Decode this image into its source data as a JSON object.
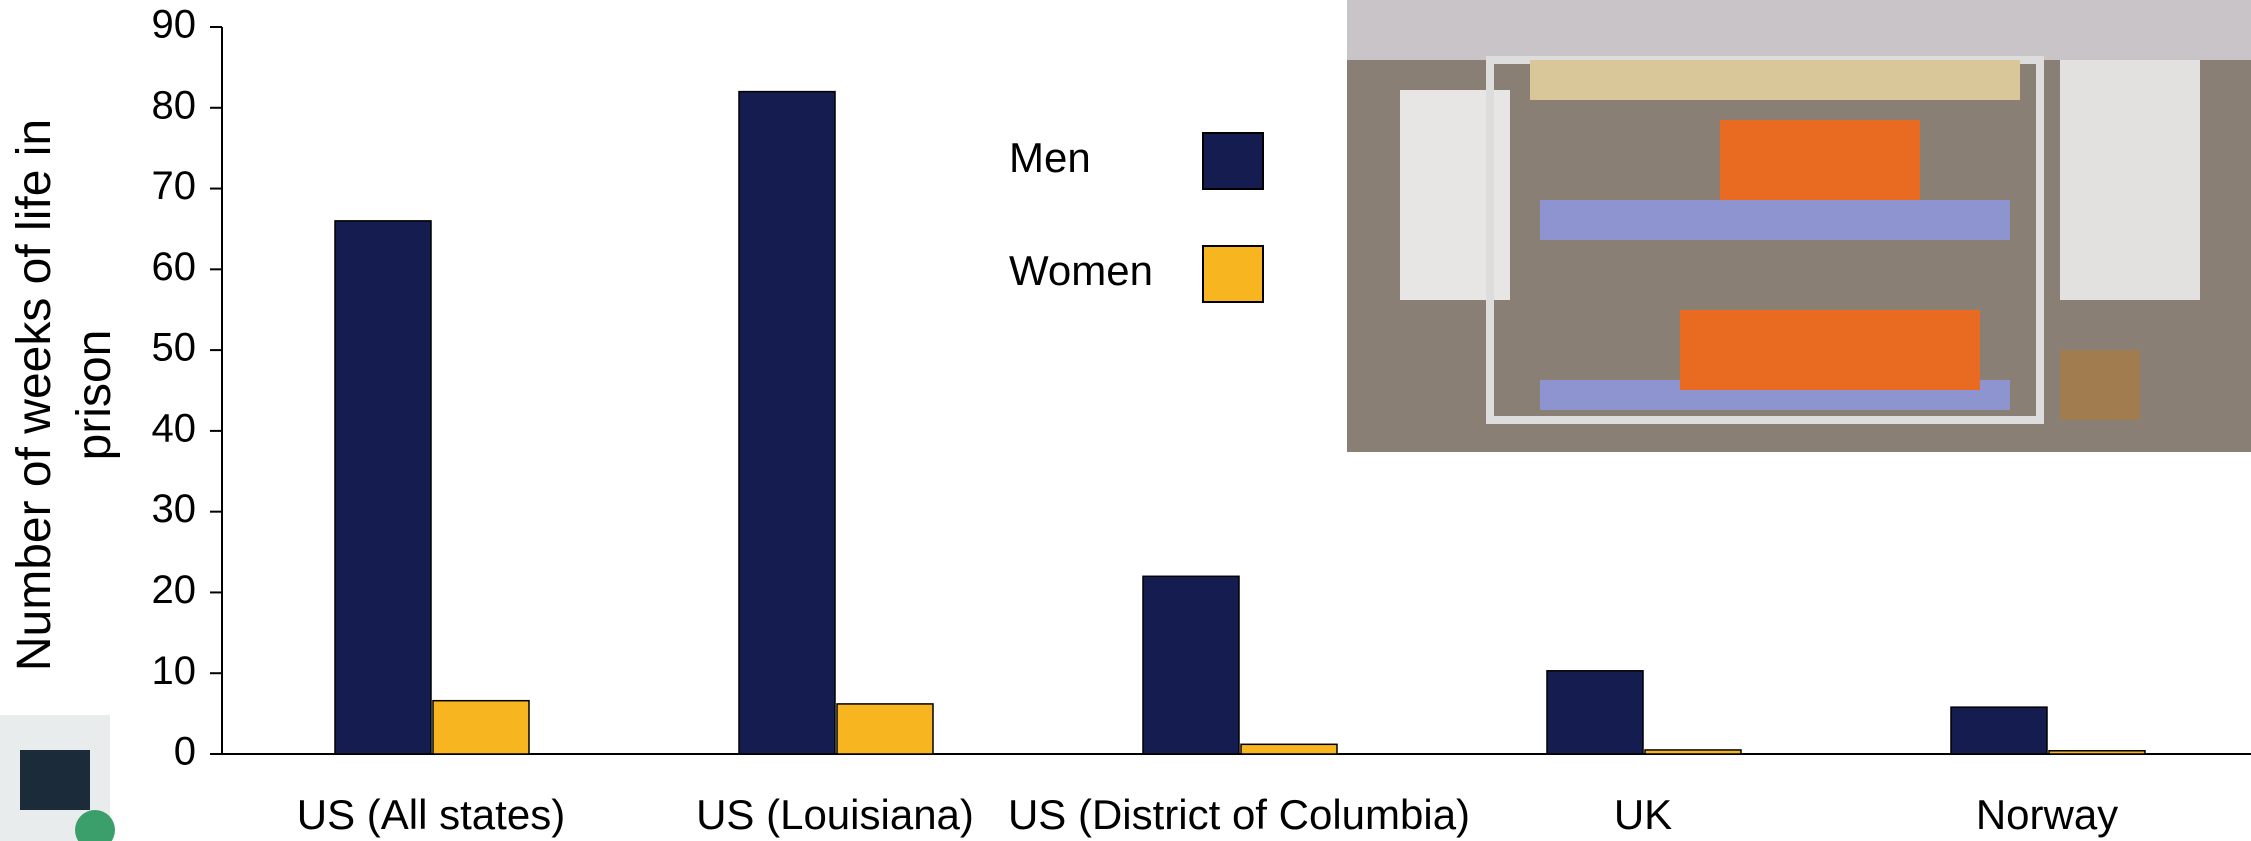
{
  "chart_data": {
    "type": "bar",
    "y_label": "Number of weeks of life in prison",
    "categories": [
      "US (All states)",
      "US (Louisiana)",
      "US (District of Columbia)",
      "UK",
      "Norway"
    ],
    "series": [
      {
        "name": "Men",
        "color": "#151d50",
        "values": [
          66,
          82,
          22,
          10.3,
          5.8
        ]
      },
      {
        "name": "Women",
        "color": "#f7b520",
        "values": [
          6.6,
          6.2,
          1.2,
          0.5,
          0.4
        ]
      }
    ],
    "ylim": [
      0,
      90
    ],
    "yticks": [
      0,
      10,
      20,
      30,
      40,
      50,
      60,
      70,
      80,
      90
    ],
    "grid": false
  }
}
